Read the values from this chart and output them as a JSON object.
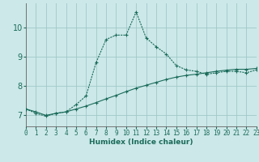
{
  "xlabel": "Humidex (Indice chaleur)",
  "background_color": "#cce8e8",
  "grid_color": "#a0c8c8",
  "line_color": "#1a6b5a",
  "x_values": [
    0,
    1,
    2,
    3,
    4,
    5,
    6,
    7,
    8,
    9,
    10,
    11,
    12,
    13,
    14,
    15,
    16,
    17,
    18,
    19,
    20,
    21,
    22,
    23
  ],
  "line1_y": [
    7.2,
    7.05,
    6.95,
    7.05,
    7.1,
    7.35,
    7.65,
    8.8,
    9.6,
    9.75,
    9.75,
    10.55,
    9.65,
    9.35,
    9.1,
    8.7,
    8.55,
    8.5,
    8.4,
    8.45,
    8.5,
    8.5,
    8.45,
    8.55
  ],
  "line2_y": [
    7.2,
    7.1,
    6.98,
    7.05,
    7.1,
    7.2,
    7.3,
    7.42,
    7.55,
    7.67,
    7.8,
    7.92,
    8.02,
    8.12,
    8.22,
    8.3,
    8.36,
    8.4,
    8.45,
    8.5,
    8.54,
    8.57,
    8.57,
    8.6
  ],
  "ylim": [
    6.6,
    10.85
  ],
  "xlim": [
    0,
    23
  ],
  "yticks": [
    7,
    8,
    9,
    10
  ],
  "xticks": [
    0,
    1,
    2,
    3,
    4,
    5,
    6,
    7,
    8,
    9,
    10,
    11,
    12,
    13,
    14,
    15,
    16,
    17,
    18,
    19,
    20,
    21,
    22,
    23
  ],
  "tick_fontsize": 5.5,
  "xlabel_fontsize": 6.5,
  "ytick_fontsize": 7
}
